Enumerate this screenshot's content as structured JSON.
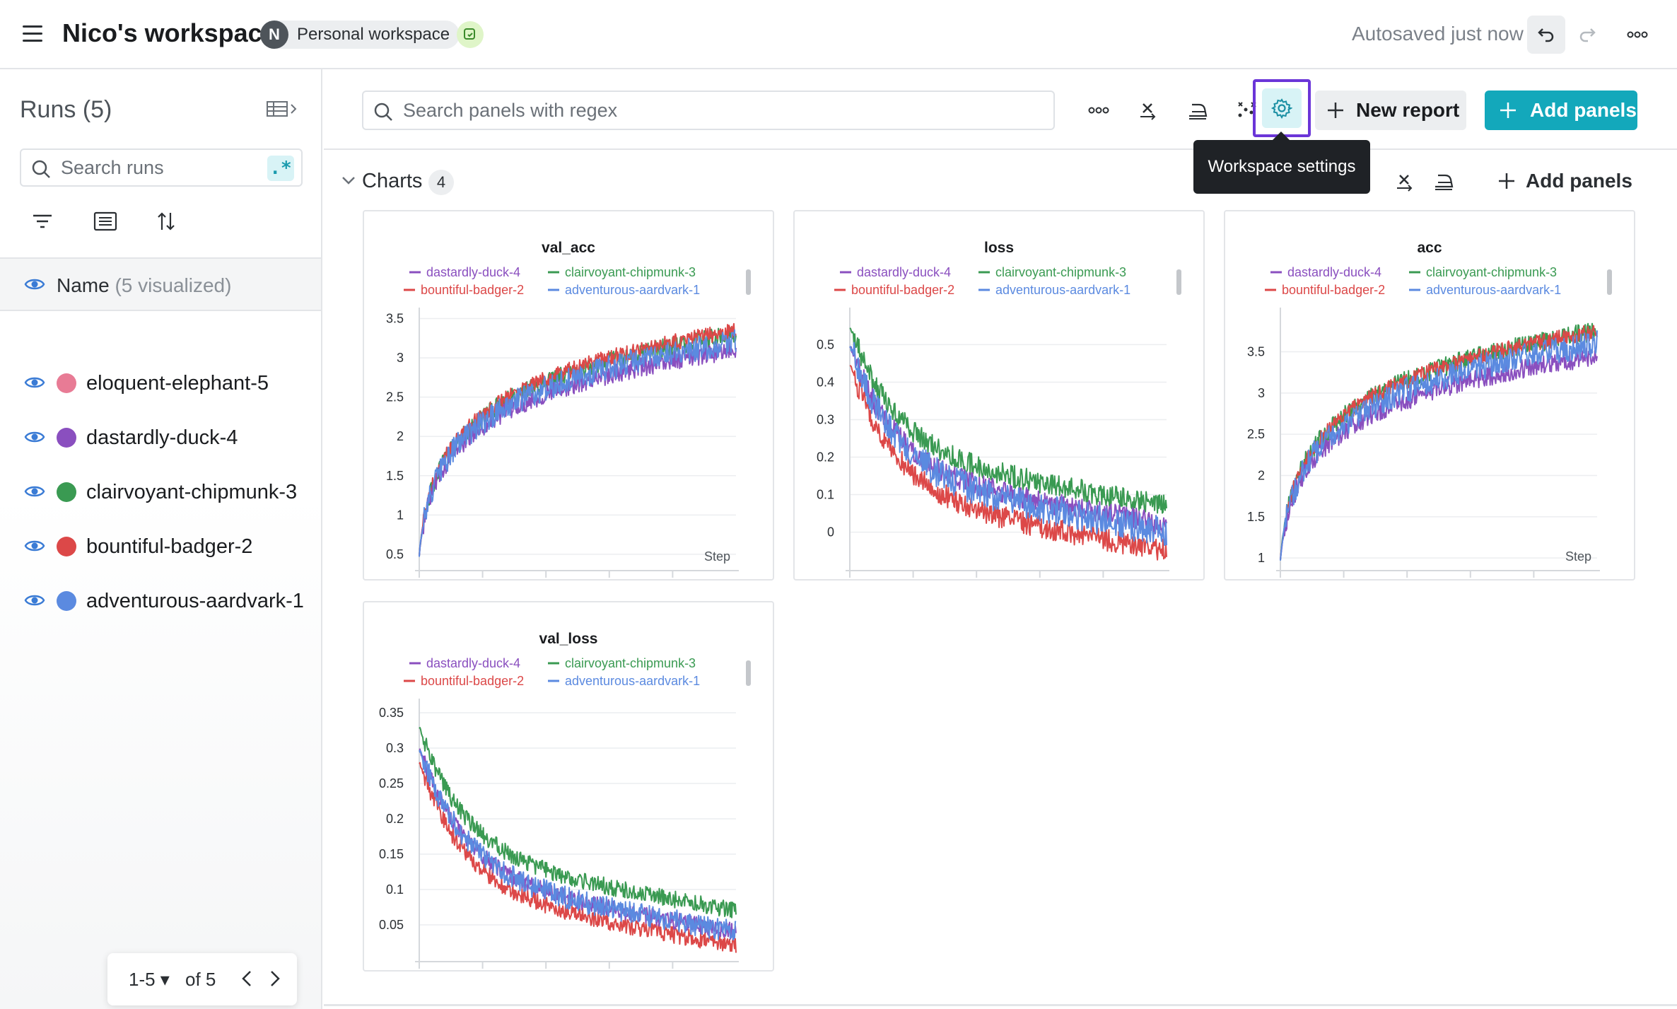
{
  "header": {
    "workspace_title": "Nico's workspace",
    "avatar_initial": "N",
    "workspace_type": "Personal workspace",
    "autosave_status": "Autosaved just now"
  },
  "sidebar": {
    "runs_title": "Runs (5)",
    "search_placeholder": "Search runs",
    "regex_label": ".*",
    "name_header": "Name",
    "name_header_note": "(5 visualized)",
    "runs": [
      {
        "name": "eloquent-elephant-5",
        "color": "#e87b95"
      },
      {
        "name": "dastardly-duck-4",
        "color": "#8a4fbf"
      },
      {
        "name": "clairvoyant-chipmunk-3",
        "color": "#3a9a52"
      },
      {
        "name": "bountiful-badger-2",
        "color": "#dc4848"
      },
      {
        "name": "adventurous-aardvark-1",
        "color": "#5b8ae0"
      }
    ],
    "pager": {
      "range": "1-5",
      "total": "of 5"
    }
  },
  "toolbar": {
    "search_placeholder": "Search panels with regex",
    "new_report_label": "New report",
    "add_panels_label": "Add panels",
    "tooltip": "Workspace settings"
  },
  "section": {
    "title": "Charts",
    "count": "4",
    "add_panels_label": "Add panels"
  },
  "chart_data": [
    {
      "type": "line",
      "title": "val_acc",
      "xlabel": "Step",
      "xlim": [
        0,
        1000
      ],
      "ylim": [
        0.4,
        3.55
      ],
      "xticks": [
        0,
        200,
        400,
        600,
        800
      ],
      "yticks": [
        0.5,
        1,
        1.5,
        2,
        2.5,
        3,
        3.5
      ],
      "shape": "log",
      "series": [
        {
          "name": "dastardly-duck-4",
          "start": 0.5,
          "end": 3.1,
          "noise": 0.12
        },
        {
          "name": "clairvoyant-chipmunk-3",
          "start": 0.5,
          "end": 3.3,
          "noise": 0.12
        },
        {
          "name": "bountiful-badger-2",
          "start": 0.5,
          "end": 3.35,
          "noise": 0.1
        },
        {
          "name": "adventurous-aardvark-1",
          "start": 0.5,
          "end": 3.2,
          "noise": 0.16
        }
      ]
    },
    {
      "type": "line",
      "title": "loss",
      "xlabel": "",
      "xlim": [
        0,
        1000
      ],
      "ylim": [
        -0.08,
        0.58
      ],
      "xticks": [
        0,
        200,
        400,
        600,
        800
      ],
      "yticks": [
        0,
        0.1,
        0.2,
        0.3,
        0.4,
        0.5
      ],
      "shape": "decay",
      "series": [
        {
          "name": "dastardly-duck-4",
          "start": 0.5,
          "end": 0.02,
          "noise": 0.03
        },
        {
          "name": "clairvoyant-chipmunk-3",
          "start": 0.55,
          "end": 0.07,
          "noise": 0.03
        },
        {
          "name": "bountiful-badger-2",
          "start": 0.45,
          "end": -0.05,
          "noise": 0.03
        },
        {
          "name": "adventurous-aardvark-1",
          "start": 0.5,
          "end": 0.0,
          "noise": 0.04
        }
      ]
    },
    {
      "type": "line",
      "title": "acc",
      "xlabel": "Step",
      "xlim": [
        0,
        1000
      ],
      "ylim": [
        0.95,
        3.95
      ],
      "xticks": [
        0,
        200,
        400,
        600,
        800
      ],
      "yticks": [
        1,
        1.5,
        2,
        2.5,
        3,
        3.5
      ],
      "shape": "log",
      "series": [
        {
          "name": "dastardly-duck-4",
          "start": 1.0,
          "end": 3.45,
          "noise": 0.12
        },
        {
          "name": "clairvoyant-chipmunk-3",
          "start": 1.0,
          "end": 3.75,
          "noise": 0.12
        },
        {
          "name": "bountiful-badger-2",
          "start": 1.0,
          "end": 3.75,
          "noise": 0.1
        },
        {
          "name": "adventurous-aardvark-1",
          "start": 1.0,
          "end": 3.6,
          "noise": 0.16
        }
      ]
    },
    {
      "type": "line",
      "title": "val_loss",
      "xlabel": "",
      "xlim": [
        0,
        1000
      ],
      "ylim": [
        0.01,
        0.36
      ],
      "xticks": [
        0,
        200,
        400,
        600,
        800
      ],
      "yticks": [
        0.05,
        0.1,
        0.15,
        0.2,
        0.25,
        0.3,
        0.35
      ],
      "shape": "decay",
      "series": [
        {
          "name": "dastardly-duck-4",
          "start": 0.3,
          "end": 0.04,
          "noise": 0.012
        },
        {
          "name": "clairvoyant-chipmunk-3",
          "start": 0.33,
          "end": 0.07,
          "noise": 0.012
        },
        {
          "name": "bountiful-badger-2",
          "start": 0.28,
          "end": 0.02,
          "noise": 0.012
        },
        {
          "name": "adventurous-aardvark-1",
          "start": 0.3,
          "end": 0.04,
          "noise": 0.016
        }
      ]
    }
  ],
  "series_colors": {
    "dastardly-duck-4": "#8a4fbf",
    "clairvoyant-chipmunk-3": "#3a9a52",
    "bountiful-badger-2": "#dc4848",
    "adventurous-aardvark-1": "#5b8ae0"
  }
}
